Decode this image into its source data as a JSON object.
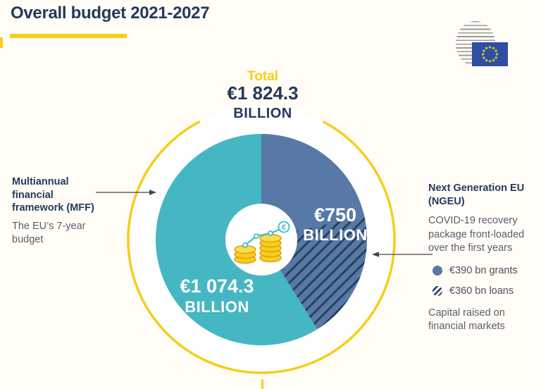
{
  "page": {
    "title": "Overall budget 2021-2027"
  },
  "colors": {
    "background": "#fffdf6",
    "navy": "#24395c",
    "yellow": "#f8cd1a",
    "teal": "#45b7c2",
    "slate_blue": "#5879a6",
    "hatch_navy": "#24425e",
    "gray_text": "#5a5e66",
    "white": "#ffffff"
  },
  "logo": {
    "name": "Council of the EU logo",
    "flag_color": "#2e4da3",
    "star_color": "#cfc42e",
    "sphere_line_color": "#98999b"
  },
  "total": {
    "label": "Total",
    "value": "€1 824.3",
    "unit": "BILLION"
  },
  "mff": {
    "heading_lines": [
      "Multiannual",
      "financial",
      "framework (MFF)"
    ],
    "description_lines": [
      "The EU’s 7-year",
      "budget"
    ],
    "value": "€1 074.3",
    "unit": "BILLION"
  },
  "ngeu": {
    "heading_lines": [
      "Next Generation EU",
      "(NGEU)"
    ],
    "description_lines": [
      "COVID-19 recovery",
      "package front-loaded",
      "over the first years"
    ],
    "bullets": [
      {
        "style": "solid",
        "label": "€390 bn grants"
      },
      {
        "style": "hatched",
        "label": "€360 bn loans"
      }
    ],
    "footnote_lines": [
      "Capital raised on",
      "financial markets"
    ],
    "value": "€750",
    "unit": "BILLION"
  },
  "chart_data": {
    "type": "pie",
    "title": "Overall budget 2021-2027",
    "total_label": "Total €1 824.3 BILLION",
    "total_value_billion_eur": 1824.3,
    "units": "EUR billion",
    "start_angle_deg": 0,
    "direction": "clockwise",
    "slices": [
      {
        "label": "Multiannual financial framework (MFF)",
        "note": "The EU’s 7-year budget",
        "value_billion_eur": 1074.3,
        "display_value": "€1 074.3 BILLION",
        "color": "#45b7c2"
      },
      {
        "label": "Next Generation EU (NGEU)",
        "note": "COVID-19 recovery package front-loaded over the first years; capital raised on financial markets",
        "value_billion_eur": 750,
        "display_value": "€750 BILLION",
        "color": "#5879a6",
        "breakdown": [
          {
            "label": "€390 bn grants",
            "value_billion_eur": 390,
            "pattern": "solid"
          },
          {
            "label": "€360 bn loans",
            "value_billion_eur": 360,
            "pattern": "hatched"
          }
        ]
      }
    ]
  }
}
